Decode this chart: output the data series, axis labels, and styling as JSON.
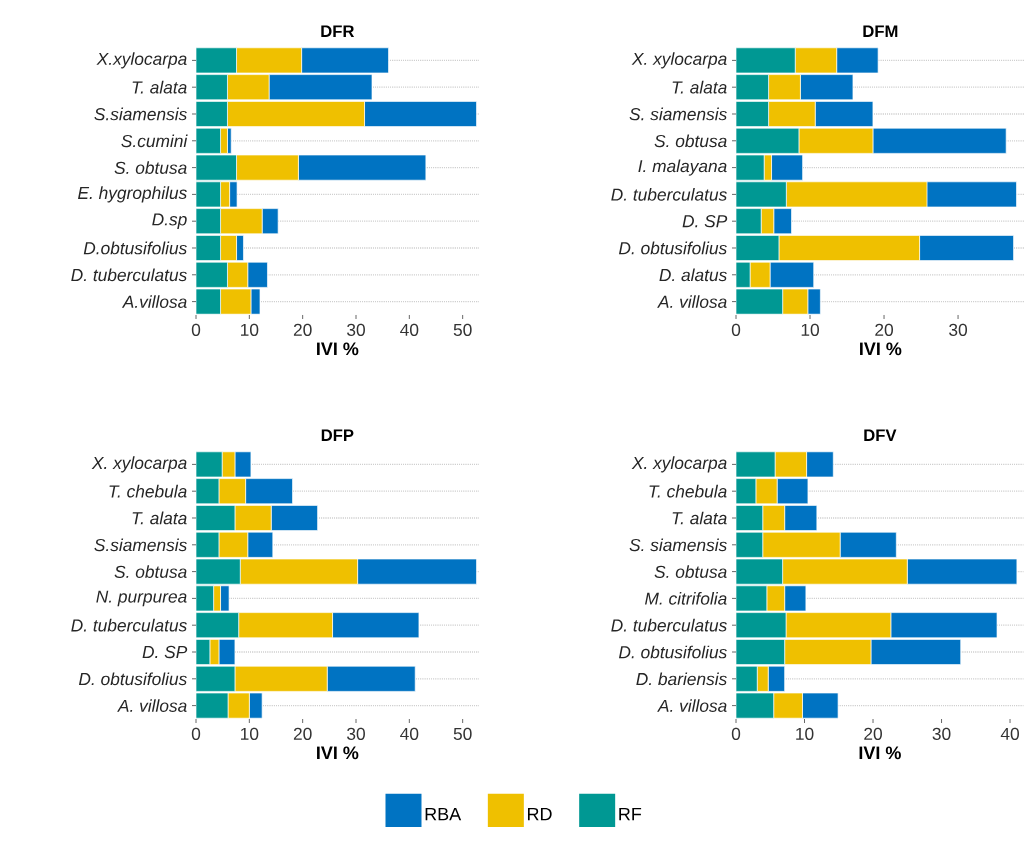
{
  "chart_data": [
    {
      "type": "bar",
      "orientation": "horizontal",
      "stacked": true,
      "title": "DFR",
      "xlabel": "IVI %",
      "categories": [
        "X.xylocarpa",
        "T. alata",
        "S.siamensis",
        "S.cumini",
        "S. obtusa",
        "E. hygrophilus",
        "D.sp",
        "D.obtusifolius",
        "D. tuberculatus",
        "A.villosa"
      ],
      "xlim": [
        0,
        53
      ],
      "xticks": [
        0,
        10,
        20,
        30,
        40,
        50
      ],
      "grid": "y",
      "series": [
        {
          "color": "#009893",
          "values": [
            7.6,
            5.9,
            5.9,
            4.6,
            7.6,
            4.6,
            4.6,
            4.6,
            5.9,
            4.6
          ]
        },
        {
          "color": "#efc000",
          "values": [
            12.2,
            7.8,
            25.7,
            1.3,
            11.6,
            1.7,
            7.8,
            3.0,
            3.8,
            5.7
          ]
        },
        {
          "color": "#0073c2",
          "values": [
            16.3,
            19.3,
            21.0,
            0.7,
            23.9,
            1.4,
            3.0,
            1.3,
            3.7,
            1.7
          ]
        }
      ]
    },
    {
      "type": "bar",
      "orientation": "horizontal",
      "stacked": true,
      "title": "DFM",
      "xlabel": "IVI %",
      "categories": [
        "X. xylocarpa",
        "T. alata",
        "S. siamensis",
        "S. obtusa",
        "I. malayana",
        "D. tuberculatus",
        "D. SP",
        "D. obtusifolius",
        "D. alatus",
        "A. villosa"
      ],
      "xlim": [
        0,
        39
      ],
      "xticks": [
        0,
        10,
        20,
        30
      ],
      "grid": "y",
      "series": [
        {
          "color": "#009893",
          "values": [
            8.0,
            4.4,
            4.4,
            8.5,
            3.8,
            6.8,
            3.4,
            5.8,
            1.9,
            6.3
          ]
        },
        {
          "color": "#efc000",
          "values": [
            5.6,
            4.3,
            6.3,
            10.0,
            1.0,
            19.0,
            1.7,
            19.0,
            2.7,
            3.4
          ]
        },
        {
          "color": "#0073c2",
          "values": [
            5.6,
            7.1,
            7.8,
            18.0,
            4.2,
            12.1,
            2.4,
            12.7,
            5.9,
            1.7
          ]
        }
      ]
    },
    {
      "type": "bar",
      "orientation": "horizontal",
      "stacked": true,
      "title": "DFP",
      "xlabel": "IVI %",
      "categories": [
        "X. xylocarpa",
        "T. chebula",
        "T. alata",
        "S.siamensis",
        "S. obtusa",
        "N. purpurea",
        "D. tuberculatus",
        "D. SP",
        "D. obtusifolius",
        "A. villosa"
      ],
      "xlim": [
        0,
        53
      ],
      "xticks": [
        0,
        10,
        20,
        30,
        40,
        50
      ],
      "grid": "y",
      "series": [
        {
          "color": "#009893",
          "values": [
            4.9,
            4.3,
            7.3,
            4.3,
            8.3,
            3.3,
            8.0,
            2.6,
            7.3,
            6.0
          ]
        },
        {
          "color": "#efc000",
          "values": [
            2.4,
            5.0,
            6.8,
            5.4,
            22.0,
            1.3,
            17.6,
            1.7,
            17.3,
            4.0
          ]
        },
        {
          "color": "#0073c2",
          "values": [
            3.0,
            8.8,
            8.7,
            4.7,
            22.3,
            1.6,
            16.2,
            3.0,
            16.5,
            2.4
          ]
        }
      ]
    },
    {
      "type": "bar",
      "orientation": "horizontal",
      "stacked": true,
      "title": "DFV",
      "xlabel": "IVI %",
      "categories": [
        "X. xylocarpa",
        "T. chebula",
        "T. alata",
        "S. siamensis",
        "S. obtusa",
        "M. citrifolia",
        "D. tuberculatus",
        "D. obtusifolius",
        "D. bariensis",
        "A. villosa"
      ],
      "xlim": [
        0,
        42
      ],
      "xticks": [
        0,
        10,
        20,
        30,
        40
      ],
      "grid": "y",
      "legend": "bottom",
      "series": [
        {
          "name": "RF",
          "color": "#009893",
          "values": [
            5.7,
            2.9,
            3.9,
            3.9,
            6.8,
            4.5,
            7.3,
            7.1,
            3.1,
            5.5
          ]
        },
        {
          "name": "RD",
          "color": "#efc000",
          "values": [
            4.6,
            3.1,
            3.2,
            11.3,
            18.2,
            2.6,
            15.3,
            12.6,
            1.6,
            4.2
          ]
        },
        {
          "name": "RBA",
          "color": "#0073c2",
          "values": [
            3.9,
            4.5,
            4.7,
            8.2,
            16.0,
            3.1,
            15.5,
            13.1,
            2.4,
            5.2
          ]
        }
      ]
    }
  ]
}
